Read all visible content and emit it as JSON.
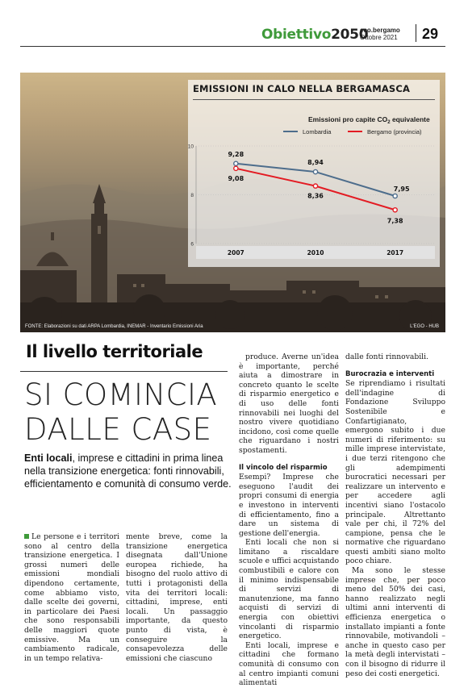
{
  "header": {
    "brand_main": "Obiettivo",
    "brand_year": "2050",
    "pub_name": "eco.bergamo",
    "pub_date": "Ottobre 2021",
    "page_number": "29"
  },
  "photo": {
    "source": "FONTE: Elaborazioni su dati ARPA Lombardia, INEMAR - Inventario Emissioni Aria",
    "credit": "L'EGO - HUB"
  },
  "chart": {
    "title": "EMISSIONI IN CALO NELLA BERGAMASCA",
    "subtitle_pre": "Emissioni pro capite CO",
    "subtitle_sub": "2",
    "subtitle_post": " equivalente"
  },
  "chart_data": {
    "type": "line",
    "title": "EMISSIONI IN CALO NELLA BERGAMASCA",
    "subtitle": "Emissioni pro capite CO2 equivalente",
    "categories": [
      "2007",
      "2010",
      "2017"
    ],
    "series": [
      {
        "name": "Lombardia",
        "values": [
          9.28,
          8.94,
          7.95
        ],
        "labels": [
          "9,28",
          "8,94",
          "7,95"
        ],
        "color": "#4d6d8c"
      },
      {
        "name": "Bergamo (provincia)",
        "values": [
          9.08,
          8.36,
          7.38
        ],
        "labels": [
          "9,08",
          "8,36",
          "7,38"
        ],
        "color": "#e31b23"
      }
    ],
    "yticks": [
      "10",
      "8",
      "6"
    ],
    "ylim": [
      6,
      10
    ],
    "legend": "top",
    "grid": true
  },
  "article": {
    "kicker": "Il livello territoriale",
    "headline_line1": "SI COMINCIA",
    "headline_line2": "DALLE CASE",
    "lead_bold": "Enti locali",
    "lead_rest": ", imprese e cittadini in prima linea nella transizione energetica: fonti rinnovabili, efficientamento e comunità di consumo verde.",
    "col1": "Le persone e i territori sono al centro della transizione energetica. I grossi numeri delle emissioni mondiali dipendono certamente, come abbiamo visto, dalle scelte dei governi, in particolare dei Paesi che sono responsabili delle maggiori quote emissive. Ma un cambiamento radicale, in un tempo relativa-",
    "col2": "mente breve, come la transizione energetica disegnata dall'Unione europea richiede, ha bisogno del ruolo attivo di tutti i protagonisti della vita dei territori locali: cittadini, imprese, enti locali. Un passaggio importante, da questo punto di vista, è conseguire la consapevolezza delle emissioni che ciascuno",
    "col3_p1": "produce. Averne un'idea è importante, perché aiuta a dimostrare in concreto quanto le scelte di risparmio energetico e di uso delle fonti rinnovabili nei luoghi del nostro vivere quotidiano incidono, così come quelle che riguardano i nostri spostamenti.",
    "col3_sub": "Il vincolo del risparmio",
    "col3_p2": "Esempi? Imprese che eseguono l'audit dei propri consumi di energia e investono in interventi di efficientamento, fino a dare un sistema di gestione dell'energia.",
    "col3_p3": "Enti locali che non si limitano a riscaldare scuole e uffici acquistando combustibili e calore con il minimo indispensabile di servizi di manutenzione, ma fanno acquisti di servizi di energia con obiettivi vincolanti di risparmio energetico.",
    "col3_p4": "Enti locali, imprese e cittadini che formano comunità di consumo con al centro impianti comuni alimentati",
    "col4_p1": "dalle fonti rinnovabili.",
    "col4_sub": "Burocrazia e interventi",
    "col4_p2": "Se riprendiamo i risultati dell'indagine di Fondazione Sviluppo Sostenibile e Confartigianato, emergono subito i due numeri di riferimento: su mille imprese intervistate, i due terzi ritengono che gli adempimenti burocratici necessari per realizzare un intervento e per accedere agli incentivi siano l'ostacolo principale. Altrettanto vale per chi, il 72% del campione, pensa che le normative che riguardano questi ambiti siano molto poco chiare.",
    "col4_p3": "Ma sono le stesse imprese che, per poco meno del 50% dei casi, hanno realizzato negli ultimi anni interventi di efficienza energetica o installato impianti a fonte rinnovabile, motivandoli – anche in questo caso per la metà degli intervistati – con il bisogno di ridurre il peso dei costi energetici."
  }
}
